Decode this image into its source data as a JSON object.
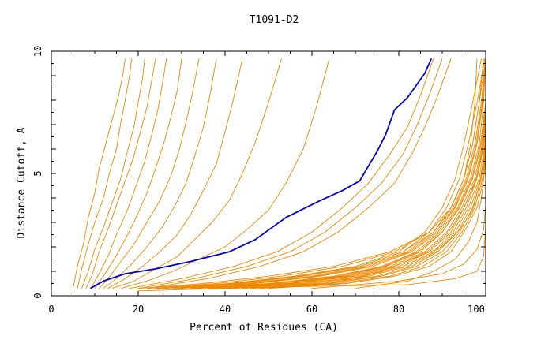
{
  "chart_data": {
    "type": "line",
    "title": "T1091-D2",
    "xlabel": "Percent of Residues (CA)",
    "ylabel": "Distance Cutoff, A",
    "xlim": [
      0,
      100
    ],
    "ylim": [
      0,
      10
    ],
    "x_ticks": [
      "0",
      "20",
      "40",
      "60",
      "80",
      "100"
    ],
    "y_ticks": [
      "0",
      "5",
      "10"
    ],
    "grid": false,
    "legend": "none",
    "colors": {
      "highlight": "#0000cc",
      "others": "#ee8800"
    },
    "highlight_series": {
      "x": [
        9,
        12,
        17,
        24,
        32,
        41,
        47,
        54,
        62,
        67,
        71,
        73,
        75,
        77,
        79,
        82,
        84,
        86,
        87.5
      ],
      "y": [
        0.3,
        0.6,
        0.9,
        1.1,
        1.4,
        1.8,
        2.3,
        3.2,
        3.9,
        4.3,
        4.7,
        5.3,
        5.9,
        6.6,
        7.6,
        8.1,
        8.6,
        9.1,
        9.7
      ]
    },
    "other_series": [
      {
        "x": [
          5,
          6,
          7.5,
          8.5,
          10,
          11,
          12.5,
          14,
          15.5,
          16.5,
          17
        ],
        "y": [
          0.3,
          1.2,
          2.2,
          3.2,
          4.2,
          5.2,
          6.2,
          7.2,
          8.2,
          9.1,
          9.7
        ]
      },
      {
        "x": [
          6,
          7,
          8.5,
          10,
          12,
          13.5,
          15,
          16,
          17,
          18,
          18.5
        ],
        "y": [
          0.3,
          1.1,
          2.1,
          3.0,
          4.0,
          5.1,
          6.0,
          7.1,
          8.0,
          9.0,
          9.7
        ]
      },
      {
        "x": [
          7,
          8.5,
          10,
          12,
          14,
          16,
          17.5,
          19,
          20,
          21,
          21.5
        ],
        "y": [
          0.3,
          1.0,
          1.9,
          2.8,
          3.8,
          4.8,
          5.9,
          6.9,
          7.9,
          8.9,
          9.7
        ]
      },
      {
        "x": [
          8,
          9.5,
          11,
          13,
          15,
          17,
          19,
          20.5,
          22,
          23,
          24
        ],
        "y": [
          0.3,
          0.9,
          1.8,
          2.7,
          3.7,
          4.7,
          5.7,
          6.7,
          7.7,
          8.7,
          9.7
        ]
      },
      {
        "x": [
          9,
          11,
          13,
          15,
          17.5,
          19.5,
          21.5,
          23,
          24.5,
          25.5,
          26.5
        ],
        "y": [
          0.3,
          0.9,
          1.6,
          2.5,
          3.5,
          4.5,
          5.5,
          6.5,
          7.6,
          8.6,
          9.7
        ]
      },
      {
        "x": [
          10,
          12,
          14.5,
          17,
          19.5,
          22,
          24,
          26,
          27.5,
          29,
          30
        ],
        "y": [
          0.3,
          0.8,
          1.5,
          2.3,
          3.2,
          4.2,
          5.2,
          6.3,
          7.3,
          8.4,
          9.7
        ]
      },
      {
        "x": [
          11,
          13.5,
          16,
          19,
          22,
          25,
          27.5,
          29.5,
          31,
          32.5,
          34
        ],
        "y": [
          0.3,
          0.8,
          1.4,
          2.1,
          3.0,
          3.9,
          4.9,
          6.0,
          7.1,
          8.3,
          9.7
        ]
      },
      {
        "x": [
          12,
          15,
          18.5,
          22,
          25.5,
          28.5,
          31,
          33,
          35,
          36.5,
          38
        ],
        "y": [
          0.3,
          0.7,
          1.3,
          2.0,
          2.8,
          3.7,
          4.6,
          5.7,
          6.9,
          8.2,
          9.7
        ]
      },
      {
        "x": [
          13,
          17,
          21,
          25,
          29,
          32,
          35,
          38,
          40,
          42,
          44
        ],
        "y": [
          0.3,
          0.7,
          1.2,
          1.8,
          2.5,
          3.3,
          4.3,
          5.4,
          6.7,
          8.1,
          9.7
        ]
      },
      {
        "x": [
          14,
          19,
          24,
          29,
          33,
          37,
          41,
          44,
          47,
          50,
          53
        ],
        "y": [
          0.3,
          0.6,
          1.1,
          1.6,
          2.3,
          3.0,
          3.9,
          5.0,
          6.3,
          7.9,
          9.7
        ]
      },
      {
        "x": [
          16,
          22,
          28,
          34,
          40,
          45,
          50,
          54,
          58,
          61,
          64
        ],
        "y": [
          0.3,
          0.6,
          1.0,
          1.5,
          2.0,
          2.7,
          3.5,
          4.6,
          6.0,
          7.7,
          9.7
        ]
      },
      {
        "x": [
          20,
          35,
          50,
          65,
          78,
          87,
          92,
          95,
          96.5,
          97.5,
          98
        ],
        "y": [
          0.3,
          0.5,
          0.8,
          1.2,
          1.8,
          2.6,
          3.6,
          4.8,
          6.2,
          7.9,
          9.7
        ]
      },
      {
        "x": [
          22,
          38,
          53,
          67,
          79,
          87,
          92,
          95,
          97,
          98.5,
          99.5
        ],
        "y": [
          0.3,
          0.5,
          0.8,
          1.2,
          1.8,
          2.6,
          3.6,
          4.8,
          6.2,
          7.9,
          9.7
        ]
      },
      {
        "x": [
          24,
          41,
          56,
          70,
          80,
          86,
          90,
          93,
          95,
          97,
          99
        ],
        "y": [
          0.3,
          0.5,
          0.8,
          1.2,
          1.8,
          2.6,
          3.6,
          4.8,
          6.2,
          7.9,
          9.7
        ]
      },
      {
        "x": [
          26,
          43,
          58,
          71,
          81,
          87,
          91,
          94,
          96,
          98,
          99.8
        ],
        "y": [
          0.3,
          0.5,
          0.8,
          1.2,
          1.8,
          2.6,
          3.6,
          4.8,
          6.2,
          7.9,
          9.7
        ]
      },
      {
        "x": [
          28,
          45,
          60,
          72,
          82,
          88,
          92,
          95,
          97,
          98.5,
          100
        ],
        "y": [
          0.3,
          0.5,
          0.8,
          1.2,
          1.8,
          2.6,
          3.6,
          4.8,
          6.2,
          7.9,
          9.7
        ]
      },
      {
        "x": [
          30,
          47,
          62,
          74,
          83,
          89,
          93,
          96,
          98,
          99.3,
          100
        ],
        "y": [
          0.3,
          0.5,
          0.8,
          1.2,
          1.8,
          2.6,
          3.6,
          4.8,
          6.2,
          7.9,
          9.7
        ]
      },
      {
        "x": [
          32,
          50,
          65,
          76,
          84,
          89.5,
          93.5,
          96.5,
          98.5,
          99.5,
          100
        ],
        "y": [
          0.3,
          0.5,
          0.8,
          1.2,
          1.8,
          2.6,
          3.6,
          4.8,
          6.2,
          7.9,
          9.7
        ]
      },
      {
        "x": [
          34,
          52,
          67,
          77,
          85,
          90,
          94,
          97,
          99,
          100,
          100
        ],
        "y": [
          0.3,
          0.5,
          0.8,
          1.2,
          1.8,
          2.6,
          3.6,
          4.8,
          6.2,
          7.9,
          9.7
        ]
      },
      {
        "x": [
          36,
          54,
          68,
          78,
          86,
          91,
          94.5,
          97.5,
          99.2,
          100,
          100
        ],
        "y": [
          0.3,
          0.5,
          0.8,
          1.2,
          1.8,
          2.6,
          3.6,
          4.8,
          6.2,
          7.9,
          9.7
        ]
      },
      {
        "x": [
          38,
          56,
          70,
          80,
          87,
          92,
          95,
          98,
          99.5,
          100,
          100
        ],
        "y": [
          0.3,
          0.5,
          0.8,
          1.2,
          1.8,
          2.6,
          3.6,
          4.8,
          6.2,
          7.9,
          9.7
        ]
      },
      {
        "x": [
          40,
          58,
          72,
          81,
          88,
          92.5,
          95.5,
          98,
          99.6,
          100,
          100
        ],
        "y": [
          0.3,
          0.5,
          0.8,
          1.2,
          1.8,
          2.6,
          3.6,
          4.8,
          6.2,
          7.9,
          9.7
        ]
      },
      {
        "x": [
          42,
          60,
          73,
          82,
          88.5,
          93,
          96,
          98.5,
          99.8,
          100,
          100
        ],
        "y": [
          0.3,
          0.5,
          0.8,
          1.2,
          1.8,
          2.6,
          3.6,
          4.8,
          6.2,
          7.9,
          9.7
        ]
      },
      {
        "x": [
          44,
          62,
          75,
          83,
          89,
          93.5,
          96.5,
          98.8,
          100,
          100,
          100
        ],
        "y": [
          0.3,
          0.5,
          0.8,
          1.2,
          1.8,
          2.6,
          3.6,
          4.8,
          6.2,
          7.9,
          9.7
        ]
      },
      {
        "x": [
          46,
          64,
          76,
          84,
          90,
          94,
          97,
          99,
          100,
          100,
          100
        ],
        "y": [
          0.3,
          0.5,
          0.8,
          1.2,
          1.8,
          2.6,
          3.6,
          4.8,
          6.2,
          7.9,
          9.7
        ]
      },
      {
        "x": [
          48,
          66,
          78,
          85.5,
          91,
          94.5,
          97.5,
          99.3,
          100,
          100,
          100
        ],
        "y": [
          0.3,
          0.5,
          0.8,
          1.2,
          1.8,
          2.6,
          3.6,
          4.8,
          6.2,
          7.9,
          9.7
        ]
      },
      {
        "x": [
          50,
          68,
          79,
          87,
          92,
          95,
          98,
          99.5,
          100,
          100,
          100
        ],
        "y": [
          0.3,
          0.5,
          0.8,
          1.2,
          1.8,
          2.6,
          3.6,
          4.8,
          6.2,
          7.9,
          9.7
        ]
      },
      {
        "x": [
          25,
          42,
          57,
          71,
          81,
          88,
          92.5,
          95.5,
          97.5,
          99,
          100
        ],
        "y": [
          0.3,
          0.5,
          0.8,
          1.2,
          1.8,
          2.6,
          3.6,
          4.8,
          6.2,
          7.9,
          9.7
        ]
      },
      {
        "x": [
          29,
          46,
          61,
          73,
          82.5,
          88.5,
          92.8,
          95.8,
          97.8,
          99.2,
          100
        ],
        "y": [
          0.3,
          0.5,
          0.8,
          1.2,
          1.8,
          2.6,
          3.6,
          4.8,
          6.2,
          7.9,
          9.7
        ]
      },
      {
        "x": [
          33,
          51,
          66,
          76.5,
          84.5,
          90,
          93.8,
          96.8,
          98.8,
          100,
          100
        ],
        "y": [
          0.3,
          0.5,
          0.8,
          1.2,
          1.8,
          2.6,
          3.6,
          4.8,
          6.2,
          7.9,
          9.7
        ]
      },
      {
        "x": [
          37,
          55,
          69,
          79,
          86.5,
          91.5,
          95,
          97.8,
          99.4,
          100,
          100
        ],
        "y": [
          0.3,
          0.5,
          0.8,
          1.2,
          1.8,
          2.6,
          3.6,
          4.8,
          6.2,
          7.9,
          9.7
        ]
      },
      {
        "x": [
          18,
          30,
          42,
          52,
          60,
          67,
          73,
          78,
          82,
          85,
          88
        ],
        "y": [
          0.3,
          0.7,
          1.2,
          1.8,
          2.6,
          3.6,
          4.6,
          5.8,
          6.9,
          8.2,
          9.7
        ]
      },
      {
        "x": [
          20,
          33,
          45,
          55,
          63,
          70,
          76,
          81,
          84,
          87,
          90
        ],
        "y": [
          0.3,
          0.7,
          1.2,
          1.8,
          2.6,
          3.6,
          4.6,
          5.8,
          6.9,
          8.2,
          9.7
        ]
      },
      {
        "x": [
          22,
          36,
          48,
          58,
          66,
          73,
          79,
          83,
          86,
          89,
          92
        ],
        "y": [
          0.3,
          0.7,
          1.2,
          1.8,
          2.6,
          3.6,
          4.6,
          5.8,
          6.9,
          8.2,
          9.7
        ]
      },
      {
        "x": [
          60,
          80,
          90,
          95,
          98,
          99.5,
          100,
          100,
          100,
          100,
          100
        ],
        "y": [
          0.3,
          0.6,
          0.9,
          1.3,
          1.9,
          2.7,
          3.7,
          4.9,
          6.3,
          8.0,
          9.7
        ]
      },
      {
        "x": [
          64,
          76,
          83,
          90,
          94,
          97,
          98.5,
          99.5,
          100,
          100,
          100
        ],
        "y": [
          0.5,
          1.0,
          1.5,
          2.0,
          2.7,
          3.5,
          4.5,
          5.5,
          6.7,
          8.1,
          9.7
        ]
      },
      {
        "x": [
          70,
          82,
          88,
          93,
          96,
          98,
          99,
          99.8,
          100,
          100,
          100
        ],
        "y": [
          0.3,
          0.6,
          1.0,
          1.5,
          2.2,
          3.0,
          4.0,
          5.2,
          6.5,
          8.0,
          9.7
        ]
      }
    ],
    "outlier_series": {
      "x": [
        20,
        50,
        82,
        93,
        98,
        99.5,
        100,
        100,
        100,
        100
      ],
      "y": [
        0.2,
        0.35,
        0.45,
        0.7,
        1.0,
        1.6,
        2.8,
        4.5,
        7.0,
        9.7
      ]
    }
  }
}
